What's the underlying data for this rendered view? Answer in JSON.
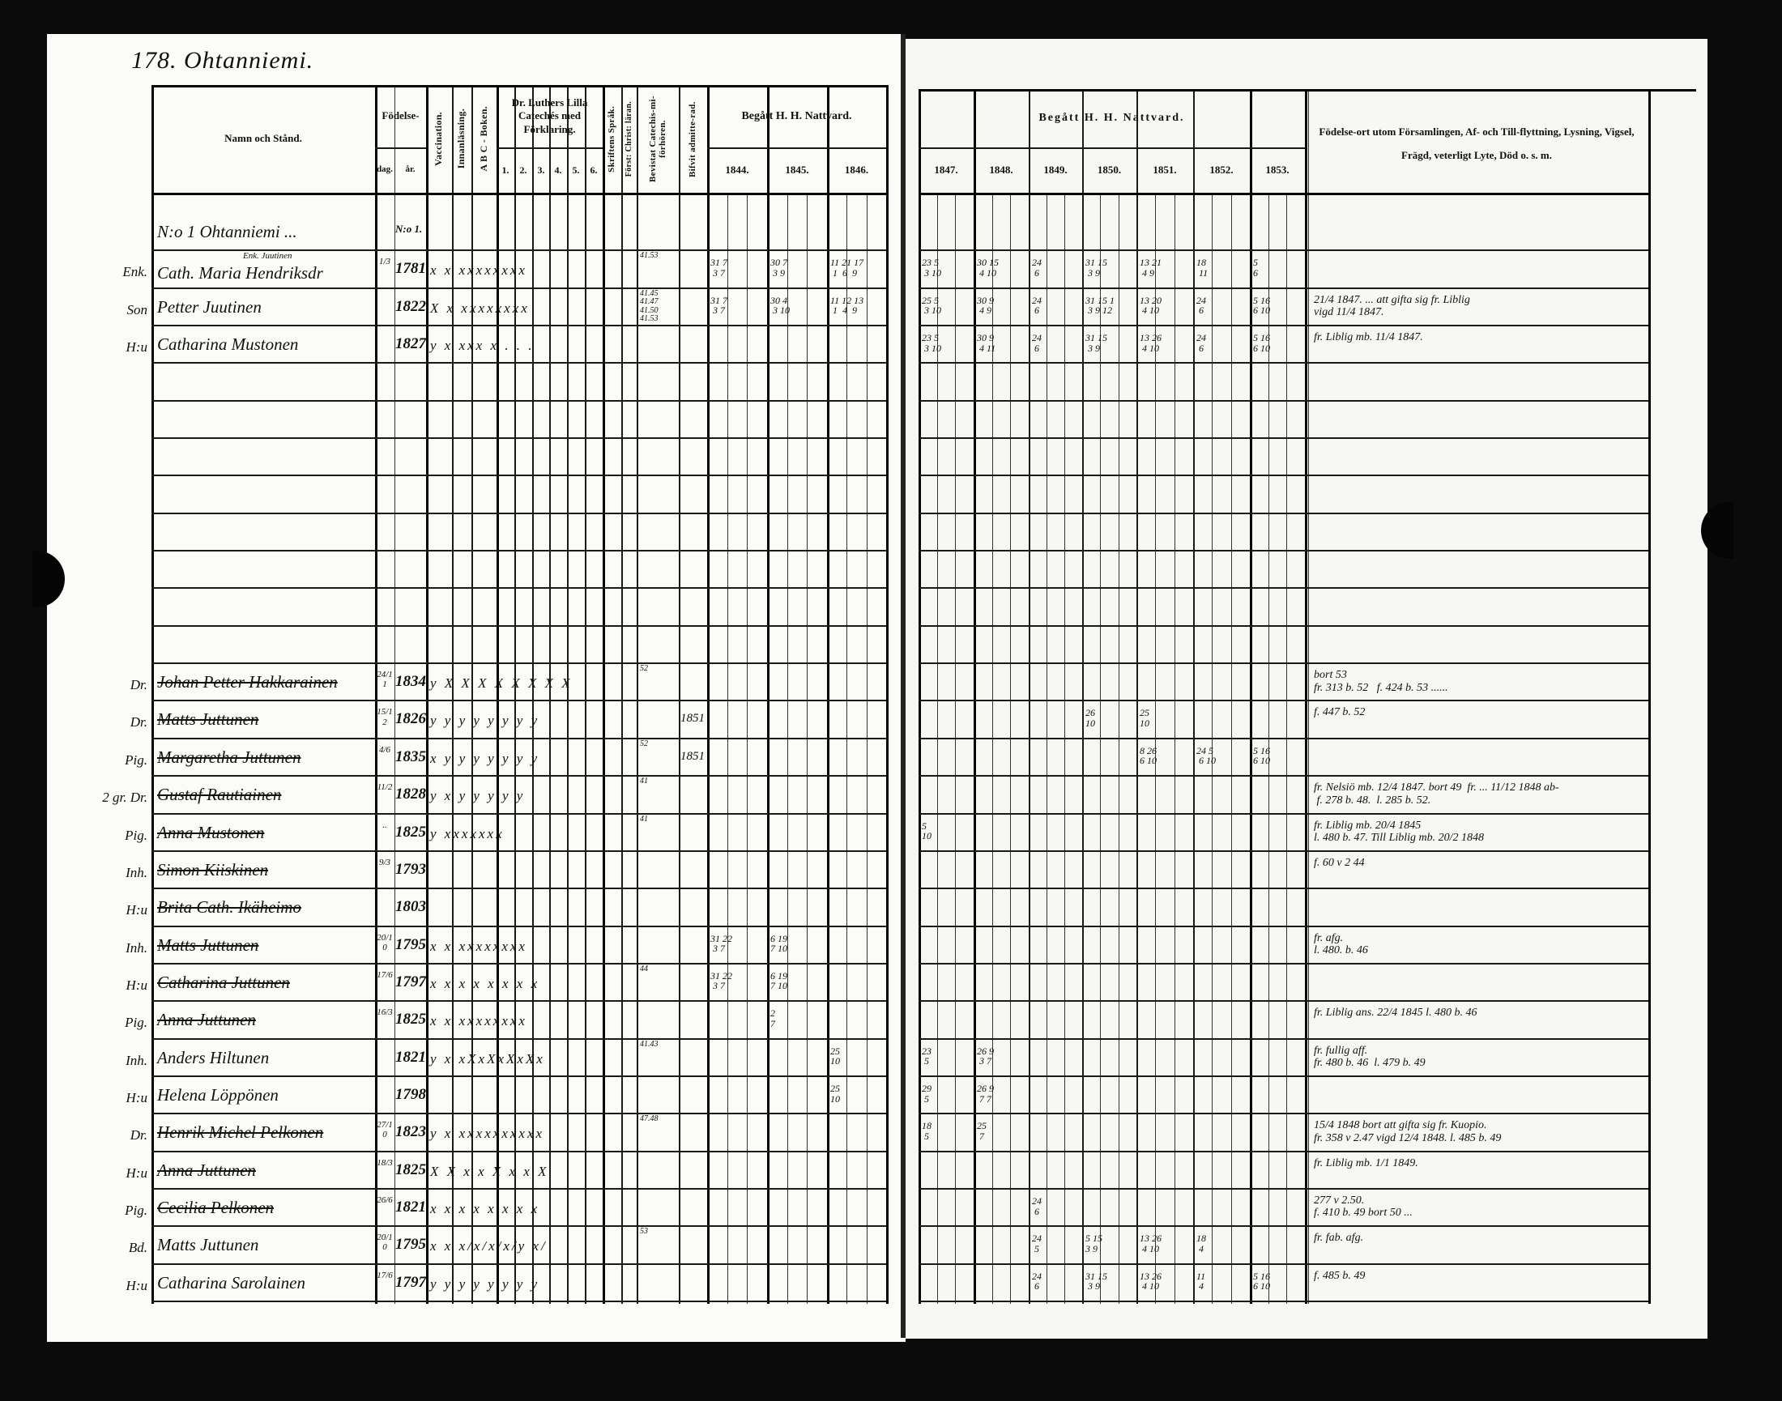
{
  "page_title": "178. Ohtanniemi.",
  "headers": {
    "name": "Namn och Stånd.",
    "birth": "Födelse-",
    "birth_day": "dag.",
    "birth_year": "år.",
    "vaccination": "Vaccination.",
    "reading": "Innanläsning.",
    "abc": "A B C - Boken.",
    "catechism": "Dr. Luthers Lilla Catechés med Förklaring.",
    "catechism_parts": [
      "1.",
      "2.",
      "3.",
      "4.",
      "5.",
      "6."
    ],
    "scripture": "Skriftens Språk.",
    "christianity": "Först: Christ: läran.",
    "catechism_hearing": "Bevistat Catechis-mi-förhören.",
    "admitted": "Bifvit admitte-rad.",
    "communion_left": "Begått H. H. Nattvard.",
    "communion_right": "Begått H. H. Nattvard.",
    "years_left": [
      "1844.",
      "1845.",
      "1846."
    ],
    "years_right": [
      "1847.",
      "1848.",
      "1849.",
      "1850.",
      "1851.",
      "1852.",
      "1853."
    ],
    "remarks": "Födelse-ort utom Församlingen, Af- och Till-flyttning, Lysning, Vigsel, Frägd, veterligt Lyte, Död o. s. m."
  },
  "rows": [
    {
      "name": "N:o 1 Ohtanniemi ...",
      "year": "N:o 1."
    },
    {
      "prefix": "Enk.",
      "subnote": "Enk. Juutinen",
      "name": "Cath. Maria Hendriksdr",
      "day": "1/3",
      "year": "1781",
      "marks": "x x xxxxxxxx",
      "bevistat": "41.53",
      "comm": {
        "1844": "31 7\n 3 7",
        "1845": "30 7\n 3 9",
        "1846": "11 21 17\n 1  6  9",
        "1847": "23 5\n 3 10",
        "1848": "30 15\n 4 10",
        "1849": "24\n 6",
        "1850": "31 15\n 3 9",
        "1851": "13 21\n 4 9",
        "1852": "18\n 11",
        "1853": "5\n6"
      }
    },
    {
      "prefix": "Son",
      "name": "Petter Juutinen",
      "year": "1822",
      "marks": "X x xxxxxxxx",
      "bevistat": "41.45\n41.47\n41.50\n41.53",
      "comm": {
        "1844": "31 7\n 3 7",
        "1845": "30 4\n 3 10",
        "1846": "11 12 13\n 1  4  9",
        "1847": "25 5\n 3 10",
        "1848": "30 9\n 4 9",
        "1849": "24\n 6",
        "1850": "31 15 1\n 3 9 12",
        "1851": "13 20\n 4 10",
        "1852": "24\n 6",
        "1853": "5 16\n6 10"
      },
      "notes": "21/4 1847. ... att gifta sig fr. Liblig\nvigd 11/4 1847."
    },
    {
      "prefix": "H:u",
      "name": "Catharina Mustonen",
      "year": "1827",
      "marks": "y x xxx x . . .",
      "comm": {
        "1847": "23 5\n 3 10",
        "1848": "30 9\n 4 11",
        "1849": "24\n 6",
        "1850": "31 15\n 3 9",
        "1851": "13 26\n 4 10",
        "1852": "24\n 6",
        "1853": "5 16\n6 10"
      },
      "notes": "fr. Liblig mb. 11/4 1847."
    },
    {},
    {},
    {},
    {},
    {},
    {},
    {},
    {},
    {
      "prefix": "Dr.",
      "name": "Johan Petter Hakkarainen",
      "struck": true,
      "day": "24/11",
      "year": "1834",
      "marks": "y X X X X X X X X",
      "bevistat": "52",
      "notes": "bort 53\nfr. 313 b. 52   f. 424 b. 53 ......"
    },
    {
      "prefix": "Dr.",
      "name": "Matts Juttunen",
      "struck": true,
      "day": "15/12",
      "year": "1826",
      "marks": "y y y y y y y y",
      "admitted": "1851",
      "comm": {
        "1850": "26\n10",
        "1851": "25\n10"
      },
      "notes": "f. 447 b. 52"
    },
    {
      "prefix": "Pig.",
      "name": "Margaretha Juttunen",
      "struck": true,
      "day": "4/6",
      "year": "1835",
      "marks": "x y y y y y y y",
      "bevistat": "52",
      "admitted": "1851",
      "comm": {
        "1851": "8 26\n6 10",
        "1852": "24 5\n 6 10",
        "1853": "5 16\n6 10"
      }
    },
    {
      "prefix": "2 gr. Dr.",
      "name": "Gustaf Rautiainen",
      "struck": true,
      "day": "11/2",
      "year": "1828",
      "marks": "y x y y y y y",
      "bevistat": "41",
      "notes": "fr. Nelsiö mb. 12/4 1847. bort 49  fr. ... 11/12 1848 ab-\n f. 278 b. 48.  l. 285 b. 52."
    },
    {
      "prefix": "Pig.",
      "name": "Anna Mustonen",
      "struck": true,
      "day": "..",
      "year": "1825",
      "marks": "y  xxxxxxx",
      "bevistat": "41",
      "comm": {
        "1847": "5\n10"
      },
      "notes": "fr. Liblig mb. 20/4 1845\nl. 480 b. 47. Till Liblig mb. 20/2 1848"
    },
    {
      "prefix": "Inh.",
      "name": "Simon Kiiskinen",
      "struck": true,
      "day": "9/3",
      "year": "1793",
      "notes": "f. 60 v 2 44"
    },
    {
      "prefix": "H:u",
      "name": "Brita Cath. Ikäheimo",
      "struck": true,
      "year": "1803"
    },
    {
      "prefix": "Inh.",
      "name": "Matts Juttunen",
      "struck": true,
      "day": "20/10",
      "year": "1795",
      "marks": "x x xxxxxxxx",
      "comm": {
        "1844": "31 22\n 3 7",
        "1845": "6 19\n7 10"
      },
      "notes": "fr. afg.\nl. 480. b. 46"
    },
    {
      "prefix": "H:u",
      "name": "Catharina Juttunen",
      "struck": true,
      "day": "17/6",
      "year": "1797",
      "marks": "x x x x x x x x",
      "bevistat": "44",
      "comm": {
        "1844": "31 22\n 3 7",
        "1845": "6 19\n7 10"
      }
    },
    {
      "prefix": "Pig.",
      "name": "Anna Juttunen",
      "struck": true,
      "day": "16/3",
      "year": "1825",
      "marks": "x x xxxxxxxx",
      "comm": {
        "1845": "2\n7"
      },
      "notes": "fr. Liblig ans. 22/4 1845 l. 480 b. 46"
    },
    {
      "prefix": "Inh.",
      "name": "Anders Hiltunen",
      "day": "",
      "year": "1821",
      "marks": "y x xXxXxXxXx",
      "bevistat": "41.43",
      "comm": {
        "1846": "25\n10",
        "1847": "23\n 5",
        "1848": "26 9\n 3 7"
      },
      "notes": "fr. fullig aff.\nfr. 480 b. 46  l. 479 b. 49"
    },
    {
      "prefix": "H:u",
      "name": "Helena Löppönen",
      "year": "1798",
      "comm": {
        "1846": "25\n10",
        "1847": "29\n 5",
        "1848": "26 9\n 7 7"
      }
    },
    {
      "prefix": "Dr.",
      "name": "Henrik Michel Pelkonen",
      "struck": true,
      "day": "27/10",
      "year": "1823",
      "marks": "y x xxxxxxxxxx",
      "bevistat": "47.48",
      "comm": {
        "1847": "18\n 5",
        "1848": "25\n 7"
      },
      "notes": "15/4 1848 bort att gifta sig fr. Kuopio.\nfr. 358 v 2.47 vigd 12/4 1848. l. 485 b. 49"
    },
    {
      "prefix": "H:u",
      "name": "Anna Juttunen",
      "struck": true,
      "day": "18/3",
      "year": "1825",
      "marks": "X X x x X x x X",
      "notes": "fr. Liblig mb. 1/1 1849."
    },
    {
      "prefix": "Pig.",
      "name": "Cecilia Pelkonen",
      "struck": true,
      "day": "26/6",
      "year": "1821",
      "marks": "x x x x x x x x",
      "comm": {
        "1849": "24\n 6"
      },
      "notes": "277 v 2.50.\nf. 410 b. 49 bort 50 ..."
    },
    {
      "prefix": "Bd.",
      "name": "Matts Juttunen",
      "day": "20/10",
      "year": "1795",
      "marks": "x x x/x/x/x/y x/",
      "bevistat": "53",
      "comm": {
        "1849": "24\n 5",
        "1850": "5 15\n3 9",
        "1851": "13 26\n 4 10",
        "1852": "18\n 4"
      },
      "notes": "fr. fab. afg."
    },
    {
      "prefix": "H:u",
      "name": "Catharina Sarolainen",
      "day": "17/6",
      "year": "1797",
      "marks": "y y y y y y y y",
      "comm": {
        "1849": "24\n 6",
        "1850": "31 15\n 3 9",
        "1851": "13 26\n 4 10",
        "1852": "11\n 4",
        "1853": "5 16\n6 10"
      },
      "notes": "f. 485 b. 49"
    }
  ]
}
